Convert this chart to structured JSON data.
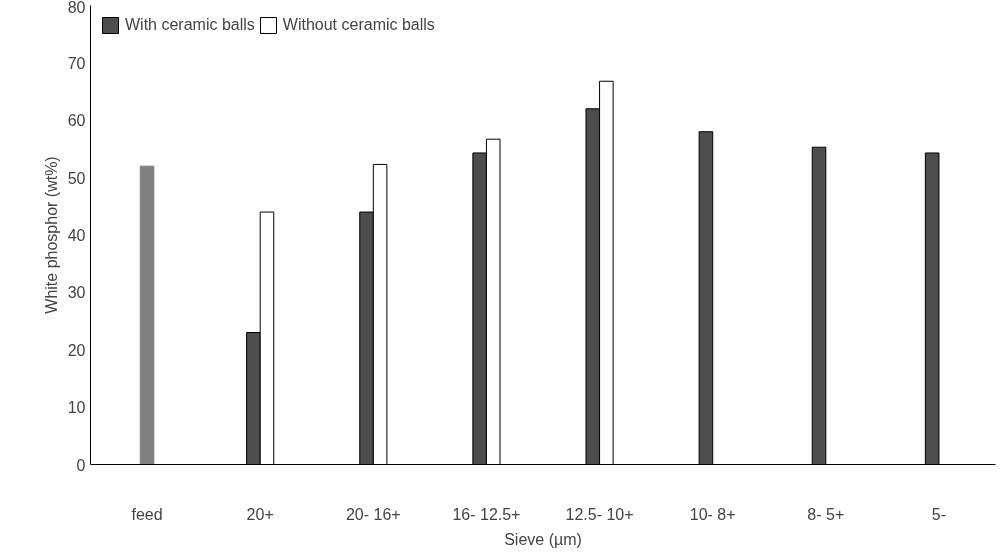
{
  "chart_data": {
    "type": "bar",
    "xlabel": "Sieve (µm)",
    "ylabel": "White phosphor (wt%)",
    "categories": [
      "feed",
      "20+",
      "20- 16+",
      "16- 12.5+",
      "12.5- 10+",
      "10- 8+",
      "8- 5+",
      "5-"
    ],
    "series": [
      {
        "color": "#808080",
        "values": [
          52,
          null,
          null,
          null,
          null,
          null,
          null,
          null
        ]
      },
      {
        "name": "With ceramic balls",
        "color": "#4d4d4d",
        "values": [
          null,
          23,
          44,
          54.3,
          62,
          58,
          55.3,
          54.3
        ]
      },
      {
        "name": "Without ceramic balls",
        "color": "#ffffff",
        "values": [
          null,
          44,
          52.3,
          56.7,
          66.8,
          null,
          null,
          null
        ]
      }
    ],
    "ylim": [
      0,
      80
    ],
    "yticks": [
      0,
      10,
      20,
      30,
      40,
      50,
      60,
      70,
      80
    ],
    "grid": false,
    "legend": "top left"
  }
}
